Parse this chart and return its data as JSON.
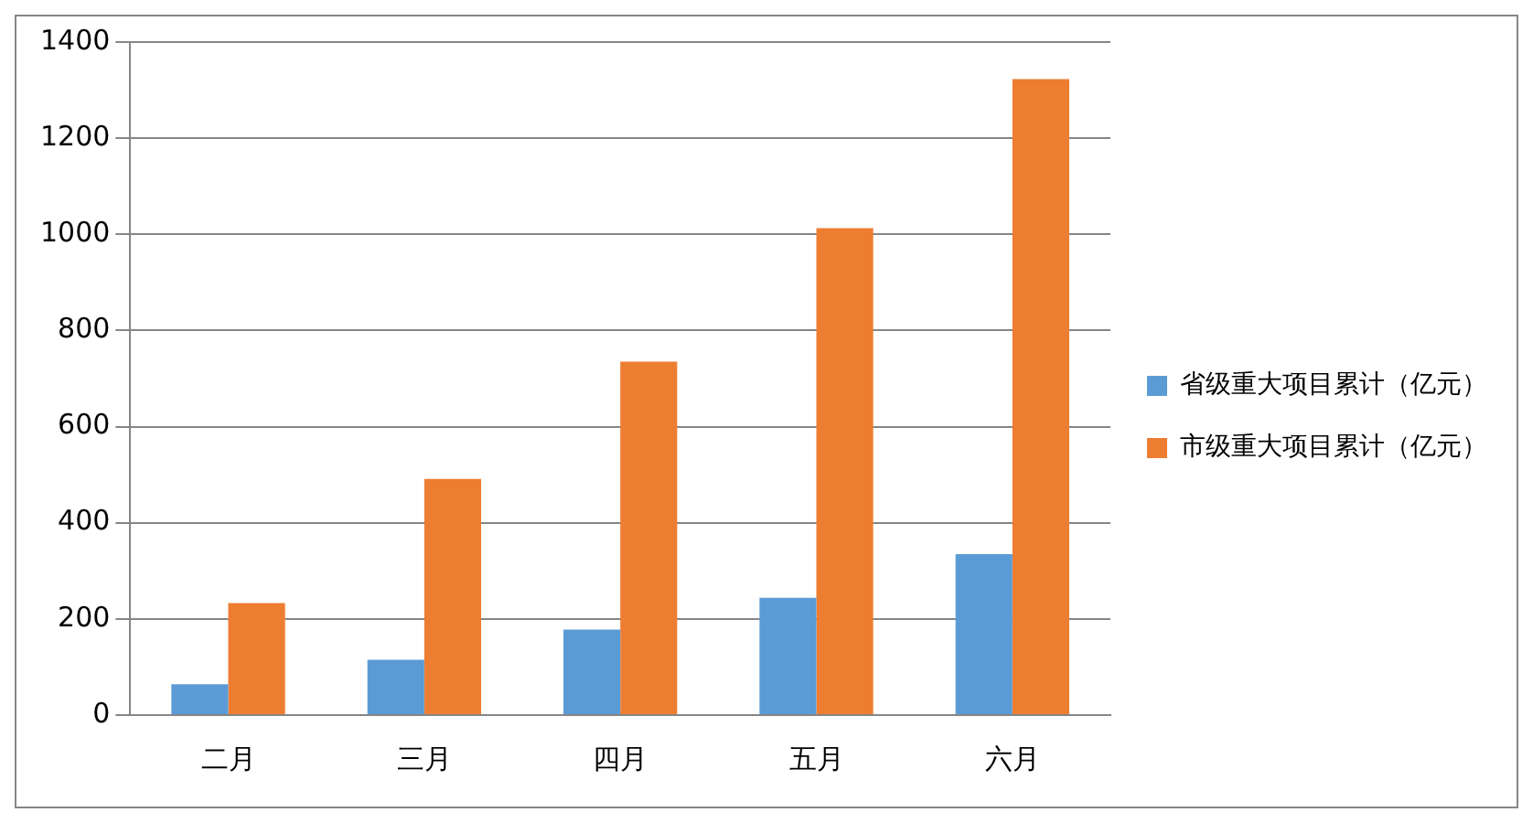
{
  "chart_data": {
    "type": "bar",
    "categories": [
      "二月",
      "三月",
      "四月",
      "五月",
      "六月"
    ],
    "series": [
      {
        "name": "省级重大项目累计（亿元）",
        "color": "#5b9bd5",
        "values": [
          64,
          115,
          178,
          244,
          335
        ]
      },
      {
        "name": "市级重大项目累计（亿元）",
        "color": "#ed7d31",
        "values": [
          233,
          491,
          735,
          1013,
          1323
        ]
      }
    ],
    "ylim": [
      0,
      1400
    ],
    "yticks": [
      0,
      200,
      400,
      600,
      800,
      1000,
      1200,
      1400
    ],
    "grid": "y",
    "legend": "right"
  }
}
